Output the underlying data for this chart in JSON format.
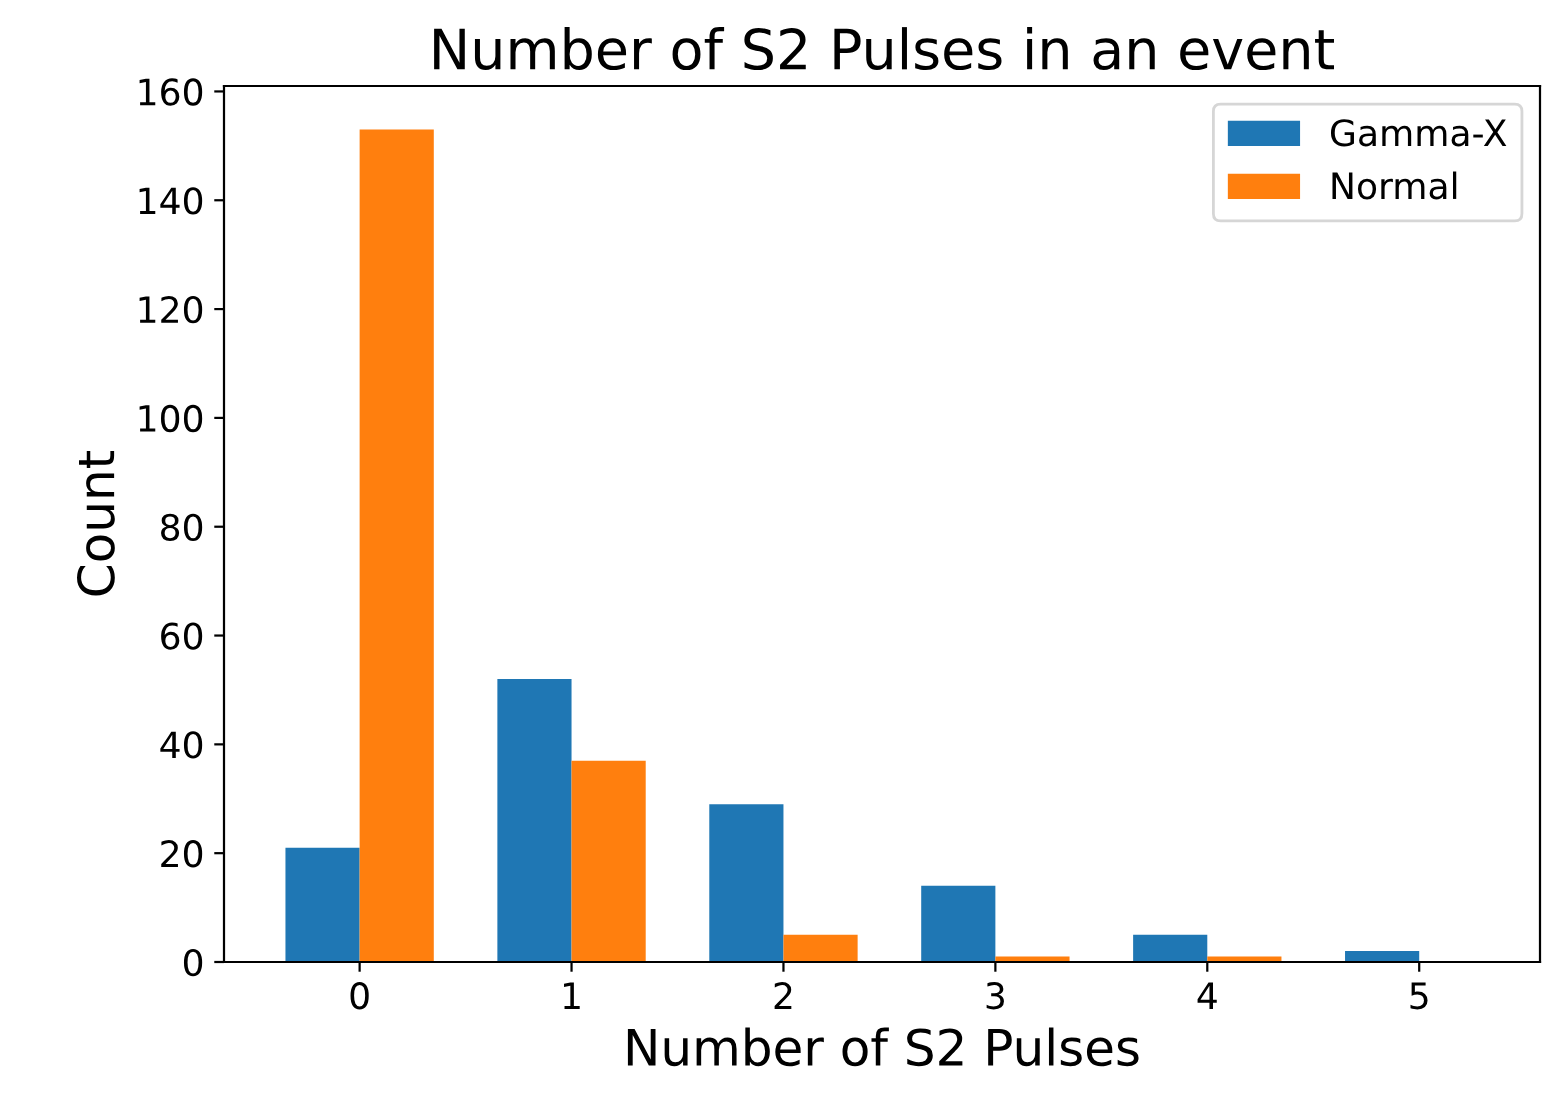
{
  "chart_data": {
    "type": "bar",
    "title": "Number of S2 Pulses in an event",
    "xlabel": "Number of S2 Pulses",
    "ylabel": "Count",
    "categories": [
      "0",
      "1",
      "2",
      "3",
      "4",
      "5"
    ],
    "series": [
      {
        "name": "Gamma-X",
        "color": "#1f77b4",
        "values": [
          21,
          52,
          29,
          14,
          5,
          2
        ]
      },
      {
        "name": "Normal",
        "color": "#ff7f0e",
        "values": [
          153,
          37,
          5,
          1,
          1,
          0
        ]
      }
    ],
    "ylim": [
      0,
      161
    ],
    "yticks": [
      0,
      20,
      40,
      60,
      80,
      100,
      120,
      140,
      160
    ],
    "grid": false,
    "legend": "top right"
  }
}
